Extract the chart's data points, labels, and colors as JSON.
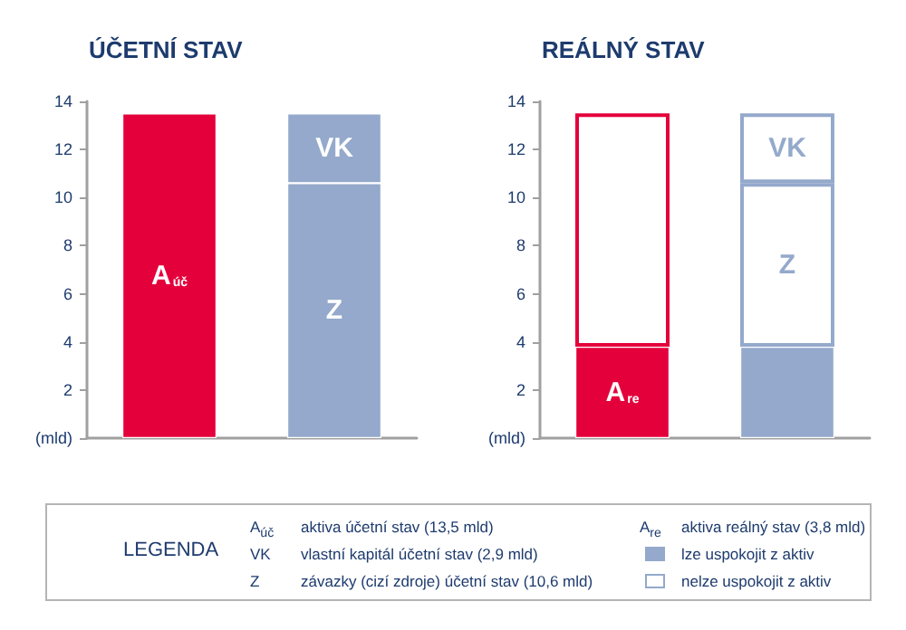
{
  "chart_data": [
    {
      "type": "bar",
      "title": "ÚČETNÍ STAV",
      "categories": [
        null,
        null
      ],
      "stacked": true,
      "ylim": [
        0,
        14
      ],
      "yticks": [
        {
          "value": 0,
          "label": "(mld)"
        },
        2,
        4,
        6,
        8,
        10,
        12,
        14
      ],
      "grid": false,
      "legend": false,
      "series": [
        {
          "name": "A$_{úč}$",
          "color": "#e4003b",
          "values": [
            13.5,
            null
          ]
        },
        {
          "name": "Z",
          "color": "#94a9cb",
          "values": [
            null,
            10.6
          ]
        },
        {
          "name": "VK",
          "color": "#94a9cb",
          "values": [
            null,
            2.9
          ]
        }
      ]
    },
    {
      "type": "bar",
      "title": "REÁLNÝ STAV",
      "categories": [
        null,
        null
      ],
      "stacked": true,
      "ylim": [
        0,
        14
      ],
      "yticks": [
        {
          "value": 0,
          "label": "(mld)"
        },
        2,
        4,
        6,
        8,
        10,
        12,
        14
      ],
      "grid": false,
      "legend": false,
      "series": [
        {
          "name": "A$_{re}$",
          "color": "#e4003b",
          "values": [
            3.8,
            null
          ]
        },
        {
          "color": "#ffffff",
          "values": [
            9.7,
            null
          ]
        },
        {
          "color": "#94a9cb",
          "values": [
            null,
            3.8
          ]
        },
        {
          "name": "Z",
          "color": "#ffffff",
          "values": [
            null,
            6.8
          ]
        },
        {
          "name": "VK",
          "color": "#ffffff",
          "values": [
            null,
            2.9
          ]
        }
      ]
    },
    {
      "type": "other",
      "title": "LEGENDA",
      "colors": [
        "#94a9cb",
        "#ffffff"
      ],
      "annotations": [
        "A$_{úč}$",
        "aktiva účetní stav (13,5 mld)",
        "VK",
        "vlastní kapitál účetní stav (2,9 mld)",
        "Z",
        "závazky (cizí zdroje) účetní stav (10,6 mld)",
        "A$_{re}$",
        "aktiva reálný stav (3,8 mld)",
        "lze uspokojit z aktiv",
        "nelze uspokojit z aktiv"
      ]
    }
  ]
}
